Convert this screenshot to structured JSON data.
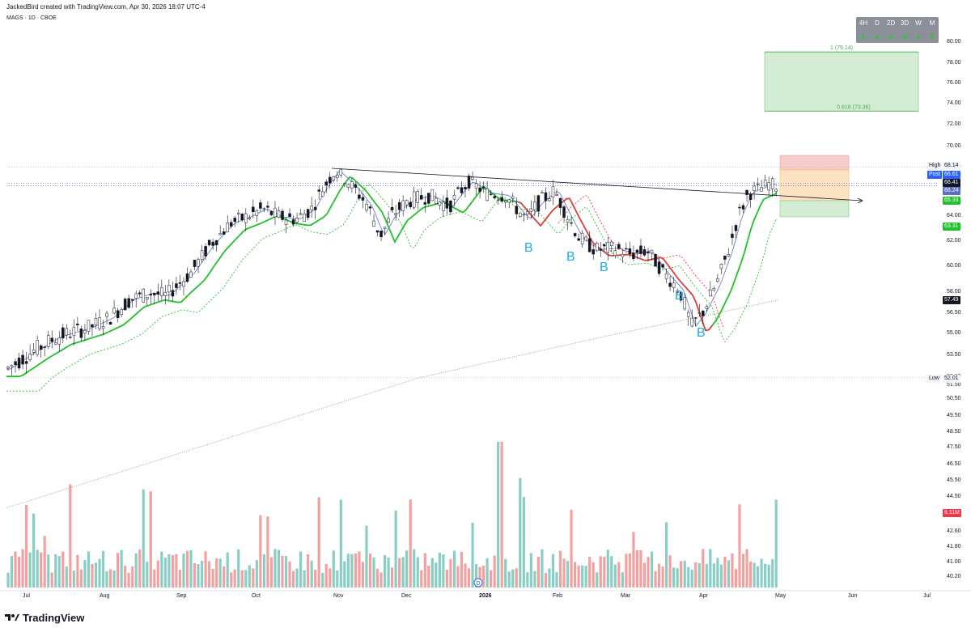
{
  "header": {
    "attribution": "JackedBird created with TradingView.com, Apr 30, 2026 18:07 UTC-4",
    "symbol": "MAGS · 1D · CBOE"
  },
  "timeframes": {
    "buttons": [
      "4H",
      "D",
      "2D",
      "3D",
      "W",
      "M"
    ],
    "arrows": "▲"
  },
  "labels": {
    "high": "High",
    "post": "Post",
    "low": "Low",
    "fib_1": "1 (79.14)",
    "fib_0618": "0.618 (73.36)",
    "b": "B"
  },
  "price_tags": {
    "high": "68.14",
    "post": "66.61",
    "last": "66.41",
    "ema_fast": "66.24",
    "ema_green": "65.33",
    "ema_dotted": "63.31",
    "sma_long": "57.49",
    "low": "52.01",
    "volume": "6.11M"
  },
  "colors": {
    "up_candle": "#ffffff",
    "down_candle": "#131722",
    "ema_fast": "#5b6fc4",
    "ema_red": "#f23645",
    "ema_green": "#22c02a",
    "sma_long": "#8a8a8a",
    "vol_up": "#89cec5",
    "vol_down": "#f4a0a0",
    "fib_zone": "#d3ecd3",
    "stop_zone": "#f9cccc",
    "target_zone": "#fde2c2",
    "b_label": "#1fa9e8",
    "post_tag": "#2962ff",
    "green_tag": "#22c02a"
  },
  "footer": {
    "brand": "TradingView"
  },
  "chart_data": {
    "type": "candlestick",
    "title": "MAGS · 1D · CBOE",
    "ylim": [
      40.2,
      80.0
    ],
    "y_scale": "log",
    "y_ticks": [
      "80.00",
      "78.00",
      "76.00",
      "74.00",
      "72.00",
      "70.00",
      "68.00",
      "66.00",
      "64.00",
      "62.00",
      "60.00",
      "58.00",
      "56.50",
      "55.00",
      "53.50",
      "52.00",
      "51.50",
      "50.50",
      "49.50",
      "48.50",
      "47.50",
      "46.50",
      "45.50",
      "44.50",
      "43.50",
      "42.60",
      "41.80",
      "41.00",
      "40.20"
    ],
    "x_ticks": [
      "Jul",
      "Aug",
      "Sep",
      "Oct",
      "Nov",
      "Dec",
      "2026",
      "Feb",
      "Mar",
      "Apr",
      "May",
      "Jun",
      "Jul"
    ],
    "ohlc_sample": [
      {
        "date": "Jul",
        "close": 52.6
      },
      {
        "date": "Aug",
        "close": 55.8
      },
      {
        "date": "Sep",
        "close": 57.8
      },
      {
        "date": "Oct",
        "close": 64.4
      },
      {
        "date": "Nov",
        "close": 67.8
      },
      {
        "date": "Nov-mid",
        "close": 62.5
      },
      {
        "date": "Dec",
        "close": 65.4
      },
      {
        "date": "2026",
        "close": 65.9
      },
      {
        "date": "Feb",
        "close": 65.5
      },
      {
        "date": "Feb-mid",
        "close": 61.8
      },
      {
        "date": "Mar",
        "close": 61.0
      },
      {
        "date": "Mar-end",
        "close": 55.4
      },
      {
        "date": "Apr",
        "close": 58.8
      },
      {
        "date": "Apr-mid",
        "close": 65.5
      },
      {
        "date": "Apr-end",
        "close": 66.4
      }
    ],
    "annotations": {
      "high": 68.14,
      "low": 52.01,
      "last": 66.41,
      "post": 66.61,
      "fib_1": 79.14,
      "fib_0618": 73.36,
      "b_markers": [
        "B",
        "B",
        "B",
        "B",
        "B"
      ]
    },
    "indicators": [
      {
        "name": "",
        "last": 66.24
      },
      {
        "name": "",
        "last": 65.33
      },
      {
        "name": "",
        "last": 63.31
      },
      {
        "name": "",
        "last": 57.49
      }
    ],
    "volume_last": "6.11M",
    "legend": "none",
    "grid": false
  }
}
